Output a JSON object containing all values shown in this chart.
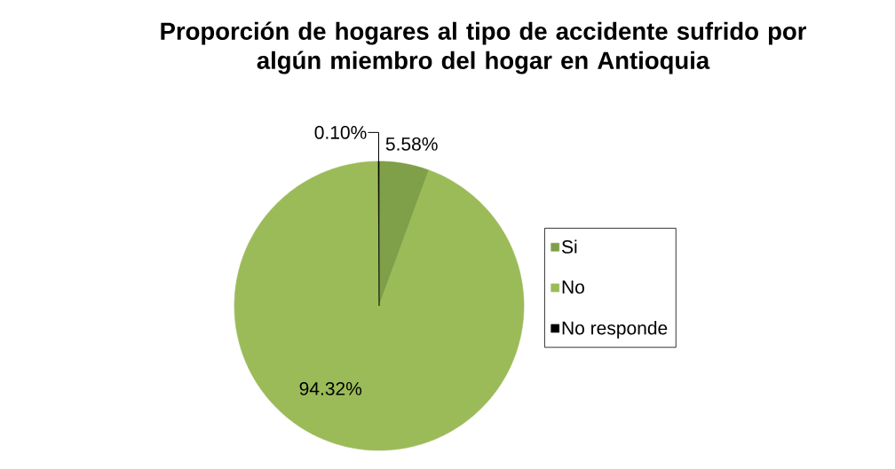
{
  "chart_data": {
    "type": "pie",
    "title": "Proporción de hogares al tipo de accidente sufrido por algún miembro del hogar en Antioquia",
    "categories": [
      "Si",
      "No",
      "No responde"
    ],
    "values": [
      5.58,
      94.32,
      0.1
    ],
    "colors": [
      "#7f9f48",
      "#9bbb59",
      "#000000"
    ],
    "value_labels": [
      "5.58%",
      "94.32%",
      "0.10%"
    ],
    "legend": "right"
  }
}
